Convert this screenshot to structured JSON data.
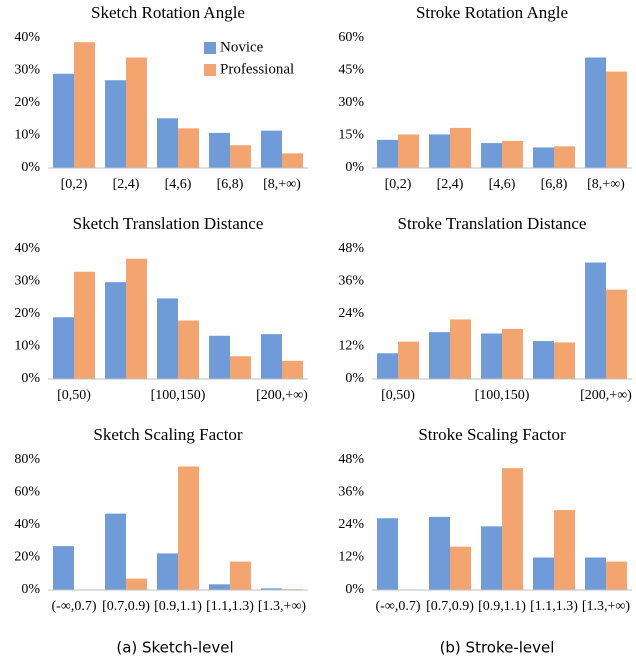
{
  "chart_data": [
    {
      "type": "bar",
      "title": "Sketch Rotation Angle",
      "categories": [
        "[0,2)",
        "[2,4)",
        "[4,6)",
        "[6,8)",
        "[8,+∞)"
      ],
      "series": [
        {
          "name": "Novice",
          "color": "#6f9bd9",
          "values": [
            29,
            27,
            15.3,
            10.8,
            11.5
          ]
        },
        {
          "name": "Professional",
          "color": "#f4a46e",
          "values": [
            38.7,
            34,
            12.2,
            7,
            4.5
          ]
        }
      ],
      "ylim": [
        0,
        40
      ],
      "yticks": [
        {
          "value": 0,
          "label": "0%"
        },
        {
          "value": 10,
          "label": "10%"
        },
        {
          "value": 20,
          "label": "20%"
        },
        {
          "value": 30,
          "label": "30%"
        },
        {
          "value": 40,
          "label": "40%"
        }
      ],
      "legend": "top-right"
    },
    {
      "type": "bar",
      "title": "Stroke Rotation Angle",
      "categories": [
        "[0,2)",
        "[2,4)",
        "[4,6)",
        "[6,8)",
        "[8,+∞)"
      ],
      "series": [
        {
          "color": "#6f9bd9",
          "values": [
            13,
            15.5,
            11.5,
            9.5,
            51
          ]
        },
        {
          "color": "#f4a46e",
          "values": [
            15.5,
            18.5,
            12.5,
            10,
            44.5
          ]
        }
      ],
      "ylim": [
        0,
        60
      ],
      "yticks": [
        {
          "value": 0,
          "label": "0%"
        },
        {
          "value": 15,
          "label": "15%"
        },
        {
          "value": 30,
          "label": "30%"
        },
        {
          "value": 45,
          "label": "45%"
        },
        {
          "value": 60,
          "label": "60%"
        }
      ]
    },
    {
      "type": "bar",
      "title": "Sketch Translation Distance",
      "categories": [
        "[0,50)",
        null,
        "[100,150)",
        null,
        "[200,+∞)"
      ],
      "series": [
        {
          "color": "#6f9bd9",
          "values": [
            19,
            29.8,
            24.8,
            13.3,
            13.8
          ]
        },
        {
          "color": "#f4a46e",
          "values": [
            33,
            37,
            18,
            7,
            5.6
          ]
        }
      ],
      "ylim": [
        0,
        40
      ],
      "yticks": [
        {
          "value": 0,
          "label": "0%"
        },
        {
          "value": 10,
          "label": "10%"
        },
        {
          "value": 20,
          "label": "20%"
        },
        {
          "value": 30,
          "label": "30%"
        },
        {
          "value": 40,
          "label": "40%"
        }
      ]
    },
    {
      "type": "bar",
      "title": "Stroke Translation Distance",
      "categories": [
        "[0,50)",
        null,
        "[100,150)",
        null,
        "[200,+∞)"
      ],
      "series": [
        {
          "color": "#6f9bd9",
          "values": [
            9.5,
            17.3,
            16.8,
            14,
            43
          ]
        },
        {
          "color": "#f4a46e",
          "values": [
            13.8,
            22,
            18.5,
            13.5,
            33
          ]
        }
      ],
      "ylim": [
        0,
        48
      ],
      "yticks": [
        {
          "value": 0,
          "label": "0%"
        },
        {
          "value": 12,
          "label": "12%"
        },
        {
          "value": 24,
          "label": "24%"
        },
        {
          "value": 36,
          "label": "36%"
        },
        {
          "value": 48,
          "label": "48%"
        }
      ]
    },
    {
      "type": "bar",
      "title": "Sketch Scaling Factor",
      "categories": [
        "(-∞,0.7)",
        "[0.7,0.9)",
        "[0.9,1.1)",
        "[1.1,1.3)",
        "[1.3,+∞)"
      ],
      "series": [
        {
          "color": "#6f9bd9",
          "values": [
            27,
            47,
            22.5,
            3.5,
            1
          ]
        },
        {
          "color": "#f4a46e",
          "values": [
            0,
            7,
            76,
            17.5,
            0.5
          ]
        }
      ],
      "ylim": [
        0,
        80
      ],
      "yticks": [
        {
          "value": 0,
          "label": "0%"
        },
        {
          "value": 20,
          "label": "20%"
        },
        {
          "value": 40,
          "label": "40%"
        },
        {
          "value": 60,
          "label": "60%"
        },
        {
          "value": 80,
          "label": "80%"
        }
      ]
    },
    {
      "type": "bar",
      "title": "Stroke Scaling Factor",
      "categories": [
        "(-∞,0.7)",
        "[0.7,0.9)",
        "[0.9,1.1)",
        "[1.1,1.3)",
        "[1.3,+∞)"
      ],
      "series": [
        {
          "color": "#6f9bd9",
          "values": [
            26.5,
            27,
            23.5,
            12,
            12
          ]
        },
        {
          "color": "#f4a46e",
          "values": [
            0,
            16,
            45,
            29.5,
            10.5
          ]
        }
      ],
      "ylim": [
        0,
        48
      ],
      "yticks": [
        {
          "value": 0,
          "label": "0%"
        },
        {
          "value": 12,
          "label": "12%"
        },
        {
          "value": 24,
          "label": "24%"
        },
        {
          "value": 36,
          "label": "36%"
        },
        {
          "value": 48,
          "label": "48%"
        }
      ]
    }
  ],
  "captions": [
    "(a) Sketch-level",
    "(b) Stroke-level"
  ]
}
